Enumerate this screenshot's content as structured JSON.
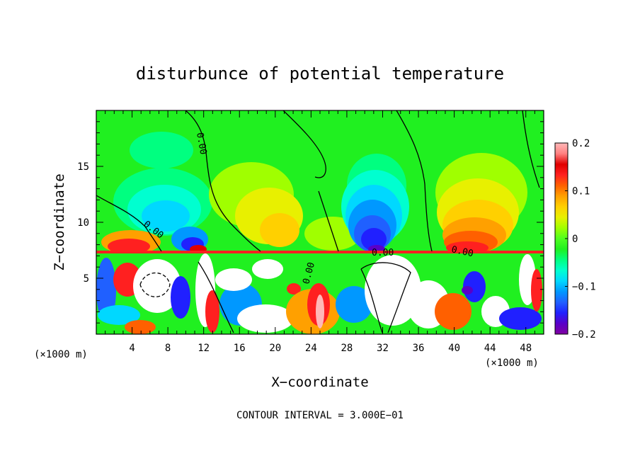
{
  "chart_data": {
    "type": "heatmap",
    "title": "disturbunce of potential temperature",
    "xlabel": "X−coordinate",
    "ylabel": "Z−coordinate",
    "x_unit_label": "(×1000 m)",
    "x_unit_label_right": "(×1000 m)",
    "footer": "CONTOUR INTERVAL = 3.000E−01",
    "xlim": [
      0,
      50
    ],
    "ylim": [
      0,
      20
    ],
    "xticks": [
      4,
      8,
      12,
      16,
      20,
      24,
      28,
      32,
      36,
      40,
      44,
      48
    ],
    "xtick_labels": [
      "4",
      "8",
      "12",
      "16",
      "20",
      "24",
      "28",
      "32",
      "36",
      "40",
      "44",
      "48"
    ],
    "yticks": [
      5,
      10,
      15
    ],
    "ytick_labels": [
      "5",
      "10",
      "15"
    ],
    "colorbar": {
      "range": [
        -0.2,
        0.2
      ],
      "ticks": [
        0.2,
        0.1,
        0,
        -0.1,
        -0.2
      ],
      "tick_labels": [
        "0.2",
        "0.1",
        "0",
        "−0.1",
        "−0.2"
      ],
      "colors": [
        "#8000a0",
        "#5a00c8",
        "#2020ff",
        "#2060ff",
        "#0098ff",
        "#00d8ff",
        "#00ffd0",
        "#00ff80",
        "#20f020",
        "#50ff20",
        "#a0ff00",
        "#e8f000",
        "#ffd000",
        "#ffa000",
        "#ff6000",
        "#ff2020",
        "#e00000",
        "#ff8080",
        "#ffb8b8"
      ]
    },
    "contour_labels": [
      {
        "text": "0.00",
        "x": 9.3,
        "z": 18.2
      },
      {
        "text": "0.00",
        "x": 6.4,
        "z": 9.6
      },
      {
        "text": "0.00",
        "x": 24.0,
        "z": 5.6
      },
      {
        "text": "0.00",
        "x": 32.4,
        "z": 7.4
      },
      {
        "text": "0.00",
        "x": 41.2,
        "z": 7.4
      }
    ]
  }
}
